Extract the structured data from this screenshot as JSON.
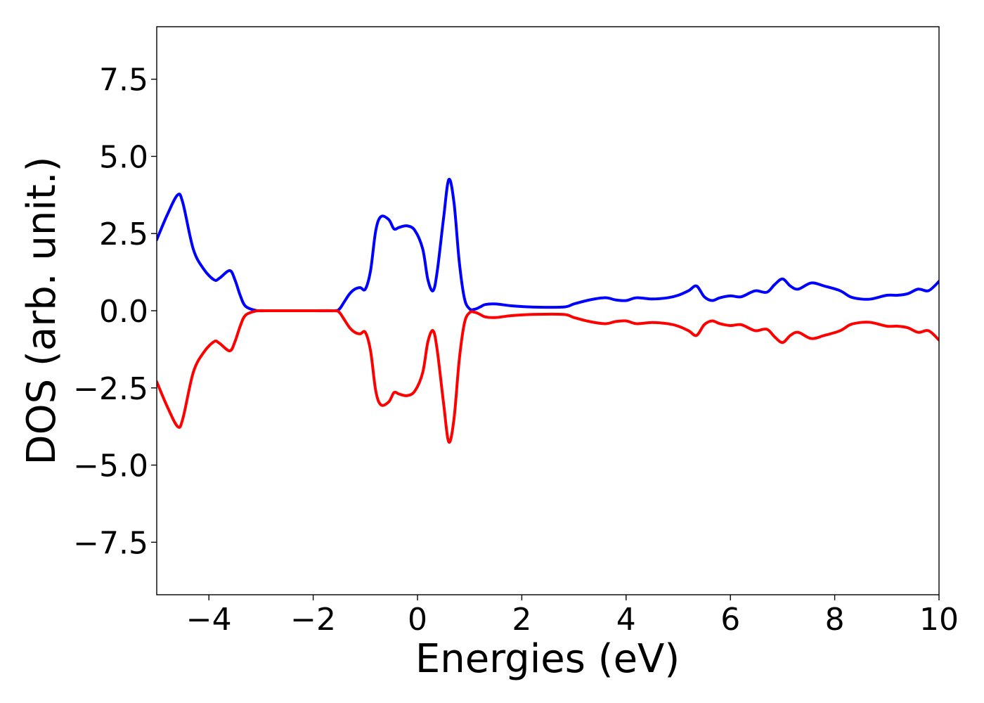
{
  "chart_data": {
    "type": "line",
    "title": "",
    "xlabel": "Energies (eV)",
    "ylabel": "DOS (arb. unit.)",
    "xlim": [
      -5,
      10
    ],
    "ylim": [
      -9.2,
      9.2
    ],
    "grid": false,
    "legend": "none",
    "x_ticks": [
      -4,
      -2,
      0,
      2,
      4,
      6,
      8,
      10
    ],
    "x_tick_labels": [
      "−4",
      "−2",
      "0",
      "2",
      "4",
      "6",
      "8",
      "10"
    ],
    "y_ticks": [
      7.5,
      5.0,
      2.5,
      0.0,
      -2.5,
      -5.0,
      -7.5
    ],
    "y_tick_labels": [
      "7.5",
      "5.0",
      "2.5",
      "0.0",
      "−2.5",
      "−5.0",
      "−7.5"
    ],
    "series": [
      {
        "color": "#0000ff",
        "x": [
          -5.0,
          -4.8,
          -4.6,
          -4.5,
          -4.3,
          -4.1,
          -3.9,
          -3.8,
          -3.6,
          -3.5,
          -3.4,
          -3.3,
          -3.1,
          -2.9,
          -2.5,
          -2.0,
          -1.6,
          -1.5,
          -1.4,
          -1.3,
          -1.2,
          -1.1,
          -1.0,
          -0.9,
          -0.8,
          -0.7,
          -0.55,
          -0.45,
          -0.35,
          -0.2,
          -0.05,
          0.1,
          0.2,
          0.3,
          0.38,
          0.5,
          0.6,
          0.7,
          0.8,
          0.9,
          1.0,
          1.1,
          1.2,
          1.3,
          1.5,
          1.8,
          2.2,
          2.8,
          3.0,
          3.3,
          3.6,
          3.8,
          4.0,
          4.2,
          4.5,
          4.8,
          5.0,
          5.2,
          5.35,
          5.5,
          5.65,
          5.8,
          6.0,
          6.2,
          6.4,
          6.5,
          6.7,
          6.85,
          7.0,
          7.15,
          7.3,
          7.55,
          7.8,
          8.1,
          8.3,
          8.5,
          8.7,
          9.0,
          9.2,
          9.4,
          9.6,
          9.8,
          10.0
        ],
        "y": [
          2.3,
          3.1,
          3.75,
          3.5,
          2.0,
          1.35,
          1.0,
          1.05,
          1.3,
          1.0,
          0.5,
          0.15,
          0.01,
          0.0,
          0.0,
          0.0,
          0.0,
          0.05,
          0.3,
          0.55,
          0.7,
          0.75,
          0.7,
          1.3,
          2.6,
          3.05,
          2.95,
          2.65,
          2.7,
          2.75,
          2.6,
          2.0,
          1.0,
          0.65,
          1.3,
          3.0,
          4.25,
          3.5,
          1.6,
          0.4,
          0.06,
          0.05,
          0.12,
          0.2,
          0.22,
          0.16,
          0.12,
          0.12,
          0.22,
          0.35,
          0.42,
          0.35,
          0.33,
          0.42,
          0.38,
          0.42,
          0.5,
          0.65,
          0.8,
          0.45,
          0.33,
          0.42,
          0.48,
          0.45,
          0.6,
          0.65,
          0.6,
          0.85,
          1.03,
          0.8,
          0.7,
          0.9,
          0.8,
          0.65,
          0.45,
          0.38,
          0.38,
          0.5,
          0.5,
          0.55,
          0.7,
          0.65,
          0.95
        ]
      },
      {
        "color": "#ff0000",
        "x": [
          -5.0,
          -4.8,
          -4.6,
          -4.5,
          -4.3,
          -4.1,
          -3.9,
          -3.8,
          -3.6,
          -3.5,
          -3.4,
          -3.3,
          -3.1,
          -2.9,
          -2.5,
          -2.0,
          -1.6,
          -1.5,
          -1.4,
          -1.3,
          -1.2,
          -1.1,
          -1.0,
          -0.9,
          -0.8,
          -0.7,
          -0.55,
          -0.45,
          -0.35,
          -0.2,
          -0.05,
          0.1,
          0.2,
          0.3,
          0.38,
          0.5,
          0.6,
          0.7,
          0.8,
          0.9,
          1.0,
          1.1,
          1.2,
          1.3,
          1.5,
          1.8,
          2.2,
          2.8,
          3.0,
          3.3,
          3.6,
          3.8,
          4.0,
          4.2,
          4.5,
          4.8,
          5.0,
          5.2,
          5.35,
          5.5,
          5.65,
          5.8,
          6.0,
          6.2,
          6.4,
          6.5,
          6.7,
          6.85,
          7.0,
          7.15,
          7.3,
          7.55,
          7.8,
          8.1,
          8.3,
          8.5,
          8.7,
          9.0,
          9.2,
          9.4,
          9.6,
          9.8,
          10.0
        ],
        "y": [
          -2.3,
          -3.1,
          -3.75,
          -3.5,
          -2.0,
          -1.35,
          -1.0,
          -1.05,
          -1.3,
          -1.0,
          -0.5,
          -0.15,
          -0.01,
          0.0,
          0.0,
          0.0,
          0.0,
          -0.05,
          -0.3,
          -0.55,
          -0.7,
          -0.75,
          -0.7,
          -1.3,
          -2.6,
          -3.05,
          -2.95,
          -2.65,
          -2.7,
          -2.75,
          -2.6,
          -2.0,
          -1.0,
          -0.65,
          -1.3,
          -3.0,
          -4.25,
          -3.5,
          -1.6,
          -0.4,
          -0.06,
          -0.05,
          -0.12,
          -0.2,
          -0.22,
          -0.16,
          -0.12,
          -0.12,
          -0.22,
          -0.35,
          -0.42,
          -0.35,
          -0.33,
          -0.42,
          -0.38,
          -0.42,
          -0.5,
          -0.65,
          -0.8,
          -0.45,
          -0.33,
          -0.42,
          -0.48,
          -0.45,
          -0.6,
          -0.65,
          -0.6,
          -0.85,
          -1.03,
          -0.8,
          -0.7,
          -0.9,
          -0.8,
          -0.65,
          -0.45,
          -0.38,
          -0.38,
          -0.5,
          -0.5,
          -0.55,
          -0.7,
          -0.65,
          -0.95
        ]
      }
    ]
  }
}
